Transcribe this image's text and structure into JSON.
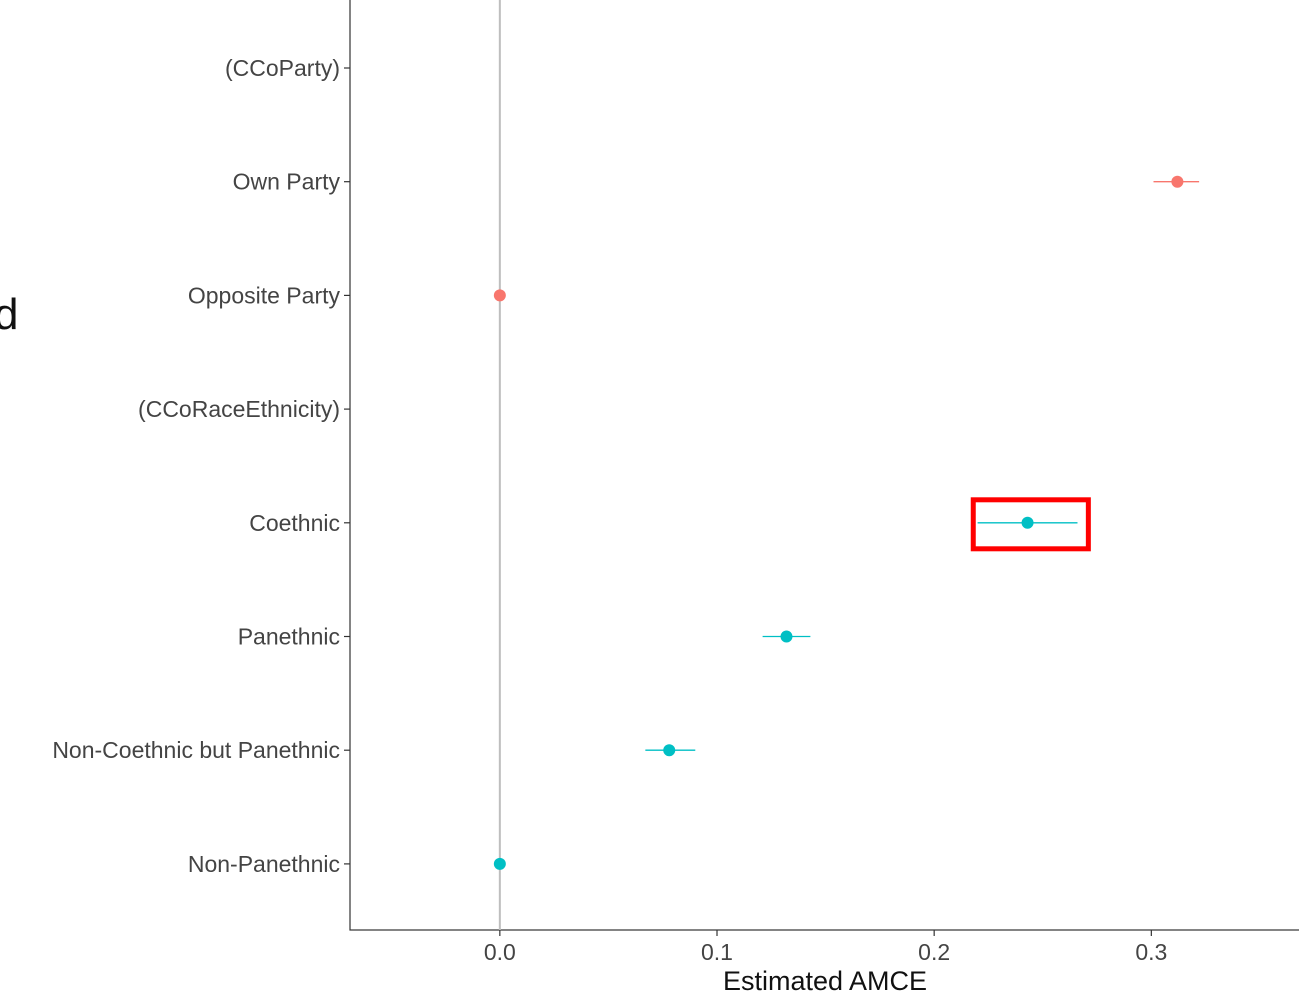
{
  "stray_text": "d",
  "chart_data": {
    "type": "scatter",
    "xlabel": "Estimated AMCE",
    "ylabel": "",
    "xlim": [
      -0.069,
      0.368
    ],
    "xticks": [
      0.0,
      0.1,
      0.2,
      0.3
    ],
    "xtick_labels": [
      "0.0",
      "0.1",
      "0.2",
      "0.3"
    ],
    "vline_x": 0.0,
    "grid": false,
    "categories": [
      "(CCoParty)",
      "Own Party",
      "Opposite Party",
      "(CCoRaceEthnicity)",
      "Coethnic",
      "Panethnic",
      "Non-Coethnic but Panethnic",
      "Non-Panethnic"
    ],
    "points": [
      {
        "label": "Own Party",
        "estimate": 0.312,
        "lower": 0.301,
        "upper": 0.322,
        "group": "party"
      },
      {
        "label": "Opposite Party",
        "estimate": 0.0,
        "lower": 0.0,
        "upper": 0.0,
        "group": "party"
      },
      {
        "label": "Coethnic",
        "estimate": 0.243,
        "lower": 0.22,
        "upper": 0.266,
        "group": "race"
      },
      {
        "label": "Panethnic",
        "estimate": 0.132,
        "lower": 0.121,
        "upper": 0.143,
        "group": "race"
      },
      {
        "label": "Non-Coethnic but Panethnic",
        "estimate": 0.078,
        "lower": 0.067,
        "upper": 0.09,
        "group": "race"
      },
      {
        "label": "Non-Panethnic",
        "estimate": 0.0,
        "lower": 0.0,
        "upper": 0.0,
        "group": "race"
      }
    ],
    "colors": {
      "party": "#F8766D",
      "race": "#00BFC4",
      "highlight": "#FF0000"
    },
    "highlight": {
      "label": "Coethnic",
      "x_from": 0.218,
      "x_to": 0.271
    }
  }
}
